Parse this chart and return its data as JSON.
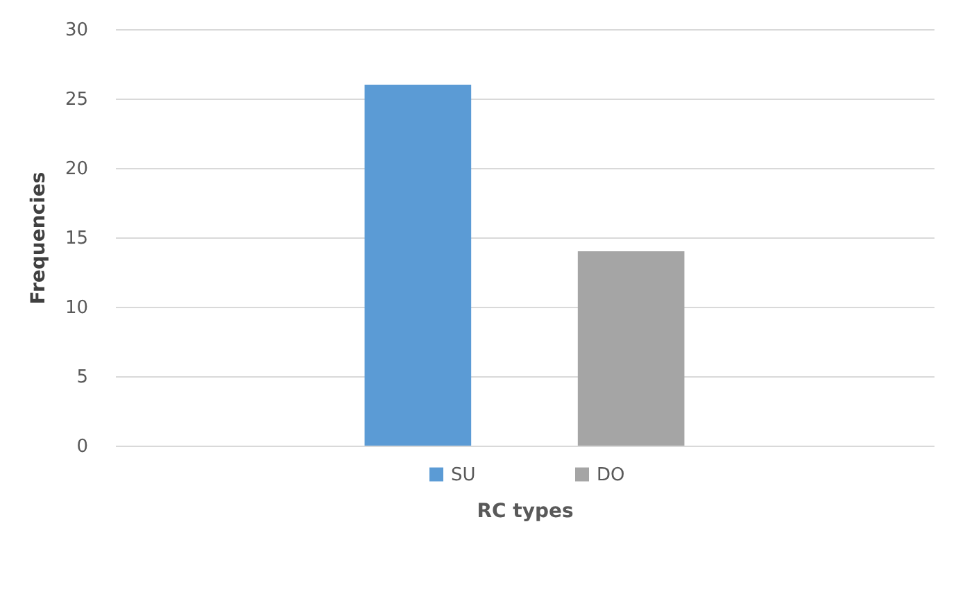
{
  "chart_data": {
    "type": "bar",
    "xlabel": "RC types",
    "ylabel": "Frequencies",
    "categories": [
      null
    ],
    "series": [
      {
        "name": "SU",
        "color": "#5b9bd5",
        "values": [
          26
        ]
      },
      {
        "name": "DO",
        "color": "#a5a5a5",
        "values": [
          14
        ]
      }
    ],
    "ylim": [
      0,
      30
    ],
    "yticks": [
      0,
      5,
      10,
      15,
      20,
      25,
      30
    ],
    "grid": "y",
    "legend": "bottom"
  }
}
